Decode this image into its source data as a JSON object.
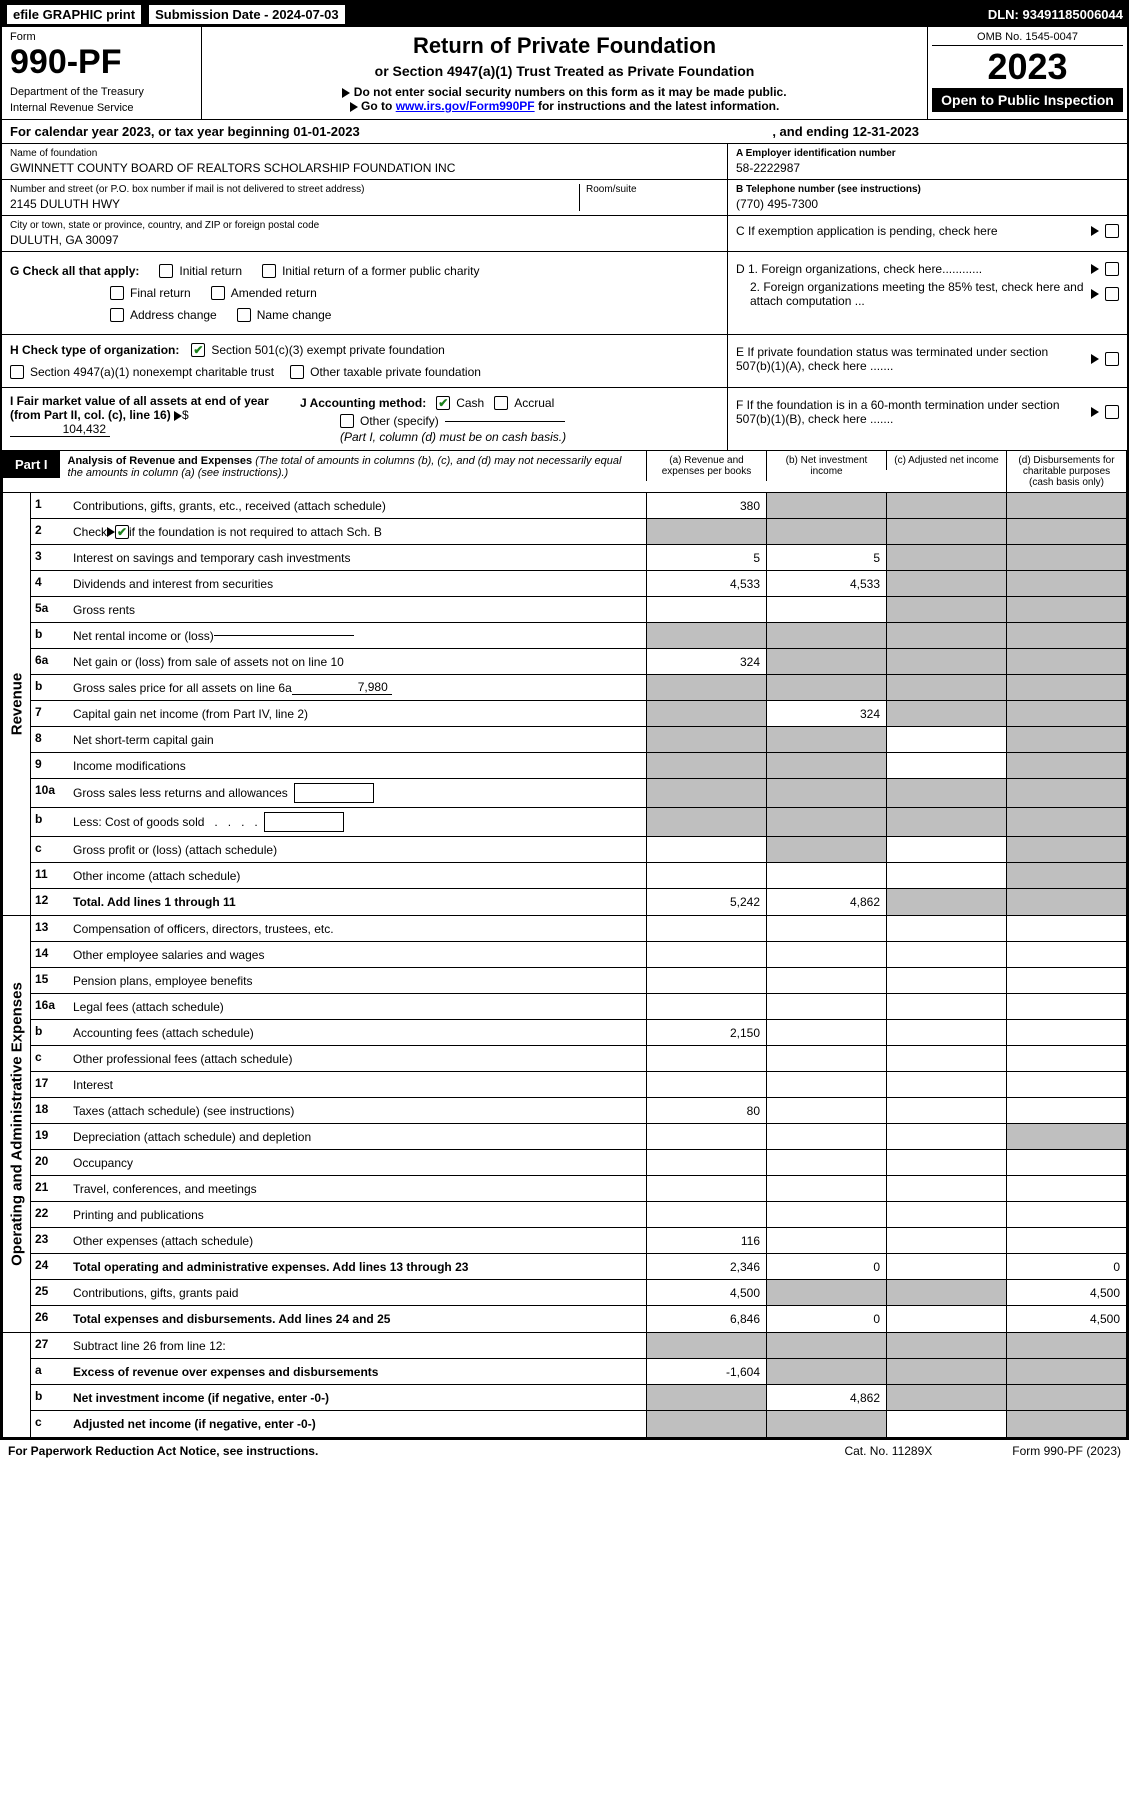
{
  "top_bar": {
    "efile": "efile GRAPHIC print",
    "submission": "Submission Date - 2024-07-03",
    "dln": "DLN: 93491185006044"
  },
  "header": {
    "form_label": "Form",
    "form_no": "990-PF",
    "dept": "Department of the Treasury",
    "irs": "Internal Revenue Service",
    "title": "Return of Private Foundation",
    "subtitle": "or Section 4947(a)(1) Trust Treated as Private Foundation",
    "note1": "Do not enter social security numbers on this form as it may be made public.",
    "note2_pre": "Go to ",
    "note2_link": "www.irs.gov/Form990PF",
    "note2_post": " for instructions and the latest information.",
    "omb": "OMB No. 1545-0047",
    "year": "2023",
    "open": "Open to Public Inspection"
  },
  "cal_year": {
    "text": "For calendar year 2023, or tax year beginning 01-01-2023",
    "ending": ", and ending 12-31-2023"
  },
  "info": {
    "name_label": "Name of foundation",
    "name": "GWINNETT COUNTY BOARD OF REALTORS SCHOLARSHIP FOUNDATION INC",
    "street_label": "Number and street (or P.O. box number if mail is not delivered to street address)",
    "street": "2145 DULUTH HWY",
    "room_label": "Room/suite",
    "city_label": "City or town, state or province, country, and ZIP or foreign postal code",
    "city": "DULUTH, GA  30097",
    "ein_label": "A Employer identification number",
    "ein": "58-2222987",
    "phone_label": "B Telephone number (see instructions)",
    "phone": "(770) 495-7300",
    "c_text": "C If exemption application is pending, check here"
  },
  "section_g": {
    "label": "G Check all that apply:",
    "initial": "Initial return",
    "initial_former": "Initial return of a former public charity",
    "final": "Final return",
    "amended": "Amended return",
    "address": "Address change",
    "name_change": "Name change"
  },
  "section_h": {
    "label": "H Check type of organization:",
    "opt1": "Section 501(c)(3) exempt private foundation",
    "opt2": "Section 4947(a)(1) nonexempt charitable trust",
    "opt3": "Other taxable private foundation"
  },
  "section_i": {
    "label": "I Fair market value of all assets at end of year (from Part II, col. (c), line 16)",
    "value": "104,432"
  },
  "section_j": {
    "label": "J Accounting method:",
    "cash": "Cash",
    "accrual": "Accrual",
    "other": "Other (specify)",
    "note": "(Part I, column (d) must be on cash basis.)"
  },
  "section_d": {
    "d1": "D 1. Foreign organizations, check here............",
    "d2": "2. Foreign organizations meeting the 85% test, check here and attach computation ...",
    "e": "E  If private foundation status was terminated under section 507(b)(1)(A), check here .......",
    "f": "F  If the foundation is in a 60-month termination under section 507(b)(1)(B), check here ......."
  },
  "part1": {
    "label": "Part I",
    "title": "Analysis of Revenue and Expenses",
    "desc": "(The total of amounts in columns (b), (c), and (d) may not necessarily equal the amounts in column (a) (see instructions).)",
    "col_a": "(a)  Revenue and expenses per books",
    "col_b": "(b)  Net investment income",
    "col_c": "(c)  Adjusted net income",
    "col_d": "(d)  Disbursements for charitable purposes (cash basis only)"
  },
  "side_labels": {
    "revenue": "Revenue",
    "expenses": "Operating and Administrative Expenses"
  },
  "rows": {
    "1": {
      "desc": "Contributions, gifts, grants, etc., received (attach schedule)",
      "a": "380"
    },
    "2_pre": "Check",
    "2_post": "if the foundation is not required to attach Sch. B",
    "3": {
      "desc": "Interest on savings and temporary cash investments",
      "a": "5",
      "b": "5"
    },
    "4": {
      "desc": "Dividends and interest from securities",
      "a": "4,533",
      "b": "4,533"
    },
    "5a": {
      "desc": "Gross rents"
    },
    "5b": {
      "desc": "Net rental income or (loss)"
    },
    "6a": {
      "desc": "Net gain or (loss) from sale of assets not on line 10",
      "a": "324"
    },
    "6b_pre": "Gross sales price for all assets on line 6a",
    "6b_val": "7,980",
    "7": {
      "desc": "Capital gain net income (from Part IV, line 2)",
      "b": "324"
    },
    "8": {
      "desc": "Net short-term capital gain"
    },
    "9": {
      "desc": "Income modifications"
    },
    "10a": {
      "desc": "Gross sales less returns and allowances"
    },
    "10b": {
      "desc": "Less: Cost of goods sold"
    },
    "10c": {
      "desc": "Gross profit or (loss) (attach schedule)"
    },
    "11": {
      "desc": "Other income (attach schedule)"
    },
    "12": {
      "desc": "Total. Add lines 1 through 11",
      "a": "5,242",
      "b": "4,862"
    },
    "13": {
      "desc": "Compensation of officers, directors, trustees, etc."
    },
    "14": {
      "desc": "Other employee salaries and wages"
    },
    "15": {
      "desc": "Pension plans, employee benefits"
    },
    "16a": {
      "desc": "Legal fees (attach schedule)"
    },
    "16b": {
      "desc": "Accounting fees (attach schedule)",
      "a": "2,150"
    },
    "16c": {
      "desc": "Other professional fees (attach schedule)"
    },
    "17": {
      "desc": "Interest"
    },
    "18": {
      "desc": "Taxes (attach schedule) (see instructions)",
      "a": "80"
    },
    "19": {
      "desc": "Depreciation (attach schedule) and depletion"
    },
    "20": {
      "desc": "Occupancy"
    },
    "21": {
      "desc": "Travel, conferences, and meetings"
    },
    "22": {
      "desc": "Printing and publications"
    },
    "23": {
      "desc": "Other expenses (attach schedule)",
      "a": "116"
    },
    "24": {
      "desc": "Total operating and administrative expenses. Add lines 13 through 23",
      "a": "2,346",
      "b": "0",
      "d": "0"
    },
    "25": {
      "desc": "Contributions, gifts, grants paid",
      "a": "4,500",
      "d": "4,500"
    },
    "26": {
      "desc": "Total expenses and disbursements. Add lines 24 and 25",
      "a": "6,846",
      "b": "0",
      "d": "4,500"
    },
    "27": {
      "desc": "Subtract line 26 from line 12:"
    },
    "27a": {
      "desc": "Excess of revenue over expenses and disbursements",
      "a": "-1,604"
    },
    "27b": {
      "desc": "Net investment income (if negative, enter -0-)",
      "b": "4,862"
    },
    "27c": {
      "desc": "Adjusted net income (if negative, enter -0-)"
    }
  },
  "footer": {
    "left": "For Paperwork Reduction Act Notice, see instructions.",
    "cat": "Cat. No. 11289X",
    "form": "Form 990-PF (2023)"
  },
  "colors": {
    "grey": "#bfbfbf",
    "link": "#0000ff",
    "check": "#1a7f1a"
  }
}
